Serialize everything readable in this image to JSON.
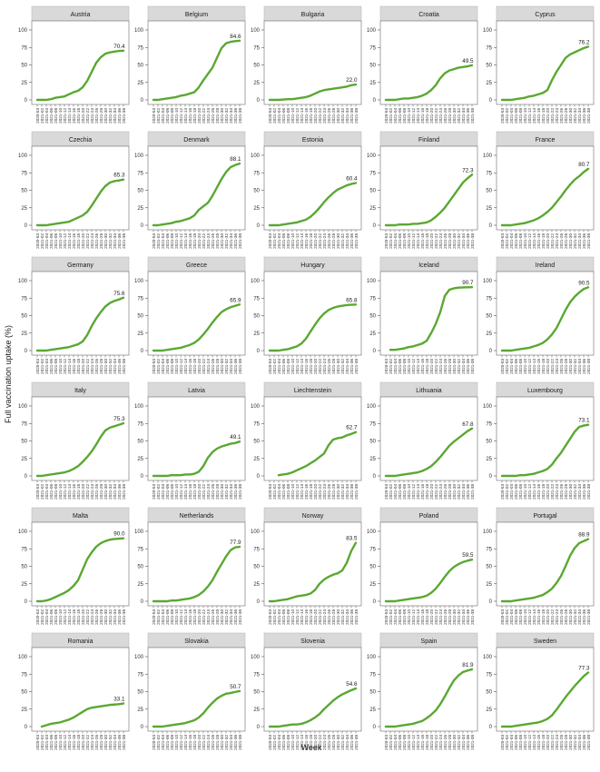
{
  "chart_data": {
    "type": "line",
    "xlabel": "Week",
    "ylabel": "Full vaccination uptake (%)",
    "ylim": [
      0,
      100
    ],
    "yticks": [
      0,
      25,
      50,
      75,
      100
    ],
    "x_weeks": [
      "2020-53",
      "2021-02",
      "2021-04",
      "2021-06",
      "2021-08",
      "2021-10",
      "2021-12",
      "2021-14",
      "2021-16",
      "2021-18",
      "2021-20",
      "2021-22",
      "2021-24",
      "2021-26",
      "2021-28",
      "2021-30",
      "2021-32",
      "2021-34",
      "2021-36",
      "2021-38"
    ],
    "grid": false,
    "line_color": "#5aa832",
    "panels": [
      {
        "country": "Austria",
        "final": "70.4",
        "values": [
          0,
          0,
          0,
          1,
          3,
          4,
          5,
          8,
          11,
          13,
          18,
          27,
          40,
          53,
          61,
          66,
          68,
          69,
          70,
          70.4
        ]
      },
      {
        "country": "Belgium",
        "final": "84.6",
        "values": [
          0,
          0,
          1,
          2,
          3,
          4,
          6,
          7,
          9,
          11,
          18,
          28,
          37,
          46,
          60,
          74,
          81,
          83,
          84,
          84.6
        ]
      },
      {
        "country": "Bulgaria",
        "final": "22.0",
        "values": [
          0,
          0,
          0,
          0.5,
          1,
          1,
          2,
          3,
          4,
          6,
          9,
          12,
          14,
          15,
          16,
          17,
          18,
          19,
          21,
          22.0
        ]
      },
      {
        "country": "Croatia",
        "final": "49.5",
        "values": [
          0,
          0,
          0,
          1,
          2,
          2,
          3,
          4,
          6,
          9,
          14,
          21,
          31,
          38,
          42,
          44,
          46,
          47,
          48,
          49.5
        ]
      },
      {
        "country": "Cyprus",
        "final": "76.2",
        "values": [
          0,
          0,
          0,
          1,
          2,
          3,
          5,
          6,
          8,
          10,
          14,
          28,
          40,
          50,
          60,
          65,
          68,
          71,
          74,
          76.2
        ]
      },
      {
        "country": "Czechia",
        "final": "65.3",
        "values": [
          0,
          0,
          0,
          1,
          2,
          3,
          4,
          5,
          8,
          11,
          14,
          19,
          28,
          38,
          48,
          56,
          61,
          63,
          64,
          65.3
        ]
      },
      {
        "country": "Denmark",
        "final": "88.1",
        "values": [
          0,
          0,
          1,
          2,
          3,
          5,
          6,
          8,
          10,
          14,
          22,
          27,
          32,
          42,
          54,
          66,
          76,
          83,
          86,
          88.1
        ]
      },
      {
        "country": "Estonia",
        "final": "60.4",
        "values": [
          0,
          0,
          0,
          1,
          2,
          3,
          4,
          6,
          8,
          12,
          18,
          25,
          33,
          40,
          46,
          51,
          54,
          57,
          59,
          60.4
        ]
      },
      {
        "country": "Finland",
        "final": "72.3",
        "values": [
          0,
          0,
          0,
          1,
          1,
          1,
          2,
          2,
          3,
          4,
          7,
          12,
          18,
          25,
          34,
          43,
          52,
          61,
          67,
          72.3
        ]
      },
      {
        "country": "France",
        "final": "80.7",
        "values": [
          0,
          0,
          0,
          1,
          2,
          3,
          5,
          7,
          10,
          14,
          19,
          25,
          33,
          41,
          50,
          58,
          65,
          70,
          76,
          80.7
        ]
      },
      {
        "country": "Germany",
        "final": "75.6",
        "values": [
          0,
          0,
          0,
          1,
          2,
          3,
          4,
          5,
          7,
          9,
          13,
          22,
          35,
          46,
          55,
          63,
          68,
          71,
          73,
          75.6
        ]
      },
      {
        "country": "Greece",
        "final": "65.9",
        "values": [
          0,
          0,
          0,
          1,
          2,
          3,
          4,
          6,
          8,
          11,
          16,
          23,
          31,
          40,
          48,
          55,
          59,
          62,
          64,
          65.9
        ]
      },
      {
        "country": "Hungary",
        "final": "65.8",
        "values": [
          0,
          0,
          0,
          1,
          2,
          4,
          6,
          10,
          17,
          27,
          37,
          46,
          53,
          58,
          61,
          63,
          64,
          65,
          65.5,
          65.8
        ]
      },
      {
        "country": "Iceland",
        "final": "90.7",
        "start": 1,
        "values": [
          null,
          1,
          1,
          2,
          3,
          5,
          6,
          8,
          10,
          14,
          25,
          38,
          55,
          78,
          87,
          89,
          90,
          90.3,
          90.5,
          90.7
        ]
      },
      {
        "country": "Ireland",
        "final": "90.5",
        "values": [
          0,
          0,
          0,
          1,
          2,
          3,
          4,
          6,
          8,
          11,
          16,
          23,
          32,
          45,
          58,
          69,
          77,
          83,
          88,
          90.5
        ]
      },
      {
        "country": "Italy",
        "final": "75.3",
        "values": [
          0,
          0,
          1,
          2,
          3,
          4,
          5,
          7,
          10,
          14,
          20,
          27,
          35,
          45,
          56,
          65,
          69,
          71,
          73,
          75.3
        ]
      },
      {
        "country": "Latvia",
        "final": "49.1",
        "values": [
          0,
          0,
          0,
          0,
          1,
          1,
          1,
          2,
          2,
          3,
          6,
          14,
          26,
          34,
          39,
          42,
          44,
          46,
          47,
          49.1
        ]
      },
      {
        "country": "Liechtenstein",
        "final": "62.7",
        "start": 2,
        "values": [
          null,
          null,
          1,
          2,
          3,
          5,
          8,
          11,
          14,
          18,
          22,
          27,
          32,
          44,
          52,
          54,
          55,
          58,
          60,
          62.7
        ]
      },
      {
        "country": "Lithuania",
        "final": "67.8",
        "values": [
          0,
          0,
          0,
          1,
          2,
          3,
          4,
          5,
          7,
          10,
          14,
          20,
          27,
          35,
          43,
          49,
          54,
          59,
          64,
          67.8
        ]
      },
      {
        "country": "Luxembourg",
        "final": "73.1",
        "values": [
          0,
          0,
          0,
          0,
          1,
          1,
          2,
          3,
          5,
          7,
          10,
          16,
          25,
          33,
          43,
          53,
          63,
          70,
          72,
          73.1
        ]
      },
      {
        "country": "Malta",
        "final": "90.0",
        "values": [
          0,
          0,
          1,
          3,
          6,
          9,
          12,
          16,
          22,
          30,
          45,
          60,
          70,
          78,
          83,
          86,
          88,
          89,
          89.5,
          90.0
        ]
      },
      {
        "country": "Netherlands",
        "final": "77.9",
        "values": [
          0,
          0,
          0,
          0,
          1,
          1,
          2,
          3,
          4,
          6,
          9,
          14,
          21,
          30,
          42,
          53,
          64,
          73,
          77,
          77.9
        ]
      },
      {
        "country": "Norway",
        "final": "83.5",
        "values": [
          0,
          0,
          1,
          2,
          3,
          5,
          7,
          8,
          9,
          11,
          16,
          25,
          31,
          35,
          38,
          40,
          44,
          55,
          72,
          83.5
        ]
      },
      {
        "country": "Poland",
        "final": "59.5",
        "values": [
          0,
          0,
          0,
          1,
          2,
          3,
          4,
          5,
          6,
          8,
          12,
          18,
          26,
          35,
          43,
          49,
          53,
          56,
          58,
          59.5
        ]
      },
      {
        "country": "Portugal",
        "final": "88.9",
        "values": [
          0,
          0,
          0,
          1,
          2,
          3,
          4,
          5,
          7,
          9,
          13,
          18,
          26,
          36,
          50,
          65,
          76,
          83,
          86,
          88.9
        ]
      },
      {
        "country": "Romania",
        "final": "33.1",
        "start": 1,
        "values": [
          null,
          0,
          2,
          4,
          5,
          6,
          8,
          10,
          13,
          17,
          21,
          25,
          27,
          28,
          29,
          30,
          31,
          31.5,
          32,
          33.1
        ]
      },
      {
        "country": "Slovakia",
        "final": "50.7",
        "values": [
          0,
          0,
          0,
          1,
          2,
          3,
          4,
          5,
          7,
          9,
          13,
          19,
          27,
          34,
          40,
          44,
          47,
          48,
          49.5,
          50.7
        ]
      },
      {
        "country": "Slovenia",
        "final": "54.6",
        "values": [
          0,
          0,
          0,
          1,
          2,
          3,
          3,
          4,
          6,
          9,
          13,
          18,
          25,
          31,
          37,
          42,
          46,
          49,
          52,
          54.6
        ]
      },
      {
        "country": "Spain",
        "final": "81.9",
        "values": [
          0,
          0,
          0,
          1,
          2,
          3,
          4,
          6,
          8,
          12,
          17,
          23,
          32,
          43,
          55,
          66,
          73,
          78,
          80,
          81.9
        ]
      },
      {
        "country": "Sweden",
        "final": "77.3",
        "values": [
          0,
          0,
          0,
          1,
          2,
          3,
          4,
          5,
          6,
          8,
          11,
          16,
          24,
          33,
          42,
          50,
          58,
          65,
          72,
          77.3
        ]
      }
    ]
  }
}
